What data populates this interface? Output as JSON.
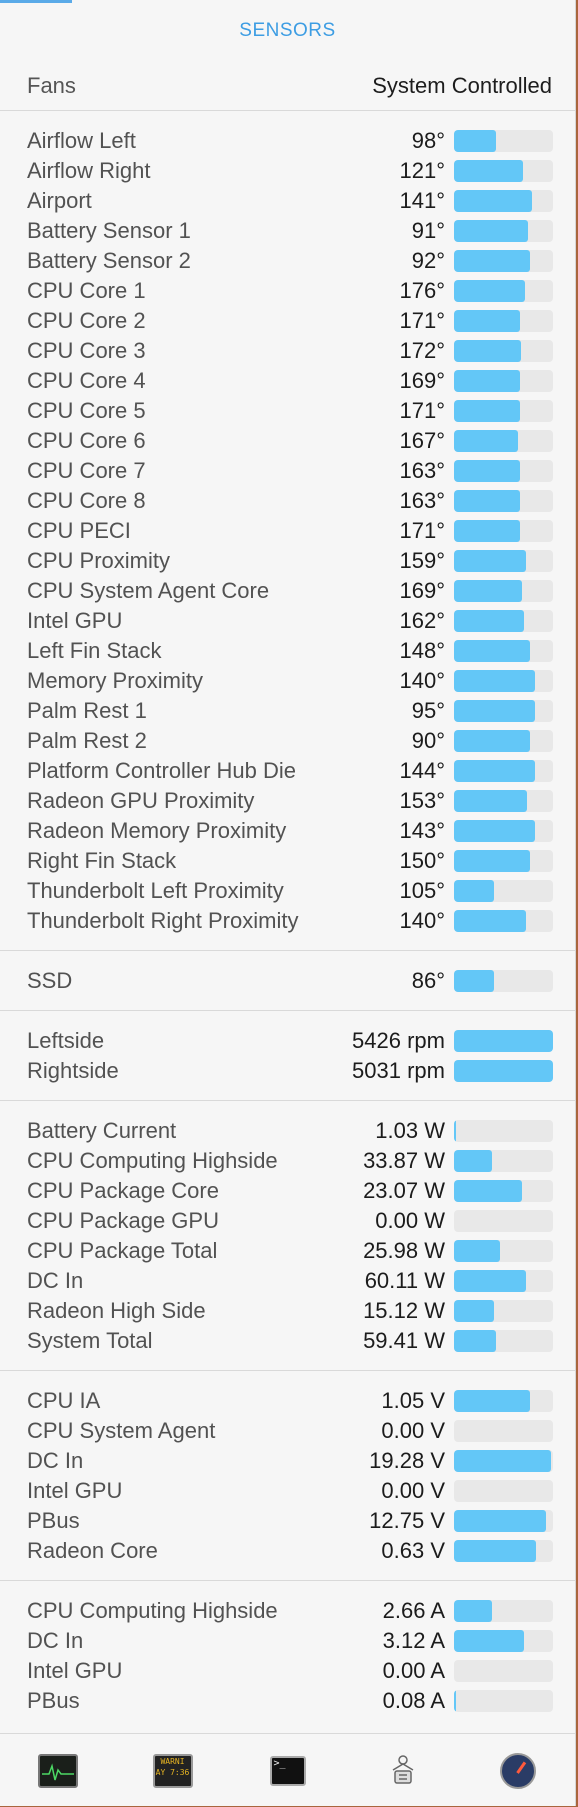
{
  "header": {
    "title": "SENSORS"
  },
  "fans": {
    "label": "Fans",
    "mode": "System Controlled"
  },
  "sections": [
    {
      "id": "temperatures",
      "rows": [
        {
          "name": "Airflow Left",
          "value": "98°",
          "level": 0.42
        },
        {
          "name": "Airflow Right",
          "value": "121°",
          "level": 0.7
        },
        {
          "name": "Airport",
          "value": "141°",
          "level": 0.79
        },
        {
          "name": "Battery Sensor 1",
          "value": "91°",
          "level": 0.75
        },
        {
          "name": "Battery Sensor 2",
          "value": "92°",
          "level": 0.77
        },
        {
          "name": "CPU Core 1",
          "value": "176°",
          "level": 0.72
        },
        {
          "name": "CPU Core 2",
          "value": "171°",
          "level": 0.67
        },
        {
          "name": "CPU Core 3",
          "value": "172°",
          "level": 0.68
        },
        {
          "name": "CPU Core 4",
          "value": "169°",
          "level": 0.67
        },
        {
          "name": "CPU Core 5",
          "value": "171°",
          "level": 0.67
        },
        {
          "name": "CPU Core 6",
          "value": "167°",
          "level": 0.65
        },
        {
          "name": "CPU Core 7",
          "value": "163°",
          "level": 0.67
        },
        {
          "name": "CPU Core 8",
          "value": "163°",
          "level": 0.67
        },
        {
          "name": "CPU PECI",
          "value": "171°",
          "level": 0.67
        },
        {
          "name": "CPU Proximity",
          "value": "159°",
          "level": 0.73
        },
        {
          "name": "CPU System Agent Core",
          "value": "169°",
          "level": 0.69
        },
        {
          "name": "Intel GPU",
          "value": "162°",
          "level": 0.71
        },
        {
          "name": "Left Fin Stack",
          "value": "148°",
          "level": 0.77
        },
        {
          "name": "Memory Proximity",
          "value": "140°",
          "level": 0.82
        },
        {
          "name": "Palm Rest 1",
          "value": "95°",
          "level": 0.82
        },
        {
          "name": "Palm Rest 2",
          "value": "90°",
          "level": 0.77
        },
        {
          "name": "Platform Controller Hub Die",
          "value": "144°",
          "level": 0.82
        },
        {
          "name": "Radeon GPU Proximity",
          "value": "153°",
          "level": 0.74
        },
        {
          "name": "Radeon Memory Proximity",
          "value": "143°",
          "level": 0.82
        },
        {
          "name": "Right Fin Stack",
          "value": "150°",
          "level": 0.77
        },
        {
          "name": "Thunderbolt Left Proximity",
          "value": "105°",
          "level": 0.4
        },
        {
          "name": "Thunderbolt Right Proximity",
          "value": "140°",
          "level": 0.73
        }
      ]
    },
    {
      "id": "ssd",
      "rows": [
        {
          "name": "SSD",
          "value": "86°",
          "level": 0.4
        }
      ]
    },
    {
      "id": "fans",
      "rows": [
        {
          "name": "Leftside",
          "value": "5426 rpm",
          "level": 1.0
        },
        {
          "name": "Rightside",
          "value": "5031 rpm",
          "level": 1.0
        }
      ]
    },
    {
      "id": "power",
      "rows": [
        {
          "name": "Battery Current",
          "value": "1.03 W",
          "level": 0.02
        },
        {
          "name": "CPU Computing Highside",
          "value": "33.87 W",
          "level": 0.38
        },
        {
          "name": "CPU Package Core",
          "value": "23.07 W",
          "level": 0.69
        },
        {
          "name": "CPU Package GPU",
          "value": "0.00 W",
          "level": 0.0
        },
        {
          "name": "CPU Package Total",
          "value": "25.98 W",
          "level": 0.46
        },
        {
          "name": "DC In",
          "value": "60.11 W",
          "level": 0.73
        },
        {
          "name": "Radeon High Side",
          "value": "15.12 W",
          "level": 0.4
        },
        {
          "name": "System Total",
          "value": "59.41 W",
          "level": 0.42
        }
      ]
    },
    {
      "id": "voltage",
      "rows": [
        {
          "name": "CPU IA",
          "value": "1.05 V",
          "level": 0.77
        },
        {
          "name": "CPU System Agent",
          "value": "0.00 V",
          "level": 0.0
        },
        {
          "name": "DC In",
          "value": "19.28 V",
          "level": 0.98
        },
        {
          "name": "Intel GPU",
          "value": "0.00 V",
          "level": 0.0
        },
        {
          "name": "PBus",
          "value": "12.75 V",
          "level": 0.93
        },
        {
          "name": "Radeon Core",
          "value": "0.63 V",
          "level": 0.83
        }
      ]
    },
    {
      "id": "current",
      "rows": [
        {
          "name": "CPU Computing Highside",
          "value": "2.66 A",
          "level": 0.38
        },
        {
          "name": "DC In",
          "value": "3.12 A",
          "level": 0.71
        },
        {
          "name": "Intel GPU",
          "value": "0.00 A",
          "level": 0.0
        },
        {
          "name": "PBus",
          "value": "0.08 A",
          "level": 0.02
        }
      ]
    }
  ],
  "toolbar": {
    "items": [
      {
        "name": "activity-monitor-icon"
      },
      {
        "name": "console-icon",
        "text": "WARNI\nAY 7:36"
      },
      {
        "name": "terminal-icon",
        "text": ">_"
      },
      {
        "name": "system-information-icon"
      },
      {
        "name": "disk-utility-gauge-icon"
      }
    ]
  },
  "colors": {
    "accent": "#3d9de3",
    "bar_fill": "#63c7f7",
    "bar_track": "#e8e8e8"
  }
}
